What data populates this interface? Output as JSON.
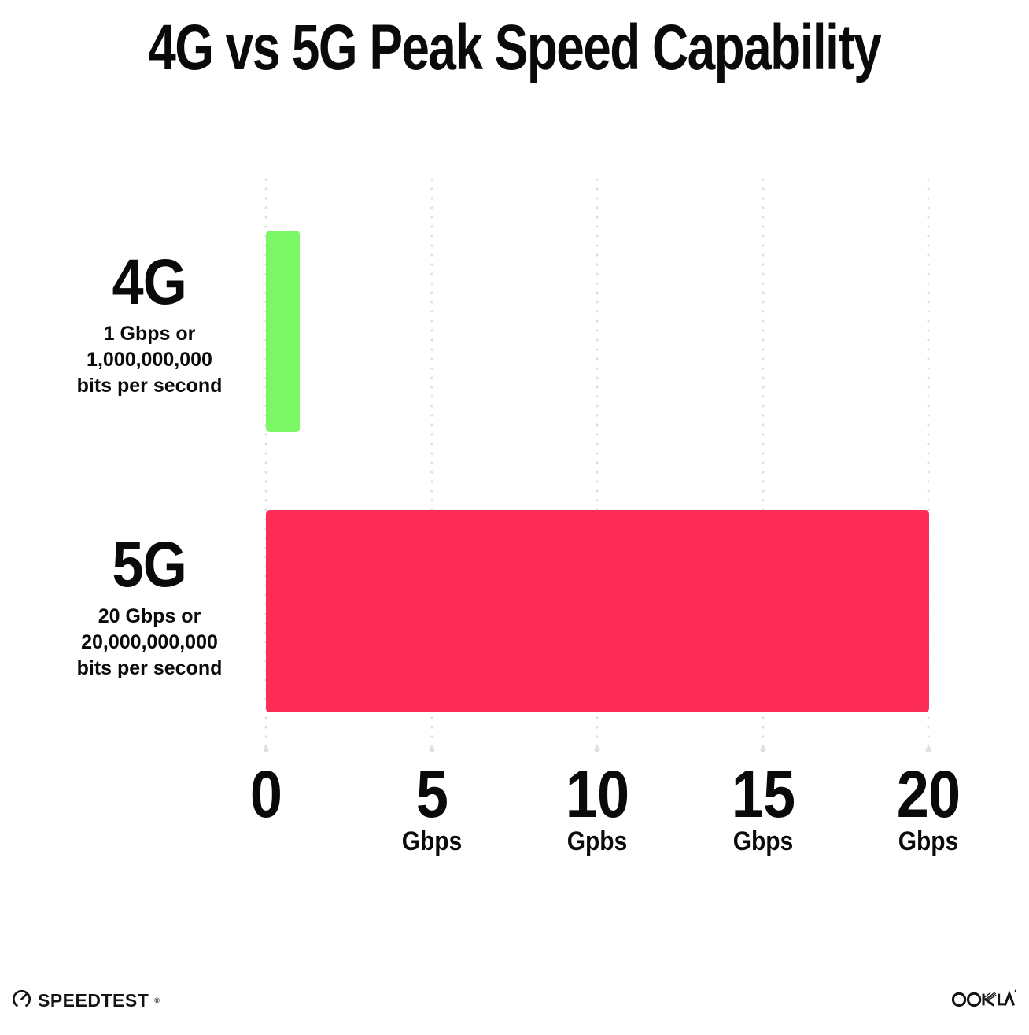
{
  "title": "4G vs 5G Peak Speed Capability",
  "chart_data": {
    "type": "bar",
    "orientation": "horizontal",
    "title": "4G vs 5G Peak Speed Capability",
    "categories": [
      "4G",
      "5G"
    ],
    "values": [
      1,
      20
    ],
    "x_unit": "Gbps",
    "xlim": [
      0,
      20
    ],
    "grid": "vertical-dotted",
    "legend": "none",
    "bars": [
      {
        "label": "4G",
        "value": 1,
        "color": "#7cf765",
        "description_lines": [
          "1 Gbps or",
          "1,000,000,000",
          "bits per second"
        ]
      },
      {
        "label": "5G",
        "value": 20,
        "color": "#fd2d58",
        "description_lines": [
          "20 Gbps or",
          "20,000,000,000",
          "bits per second"
        ]
      }
    ],
    "x_ticks": [
      {
        "value": 0,
        "label": "0",
        "unit": ""
      },
      {
        "value": 5,
        "label": "5",
        "unit": "Gbps"
      },
      {
        "value": 10,
        "label": "10",
        "unit": "Gpbs"
      },
      {
        "value": 15,
        "label": "15",
        "unit": "Gbps"
      },
      {
        "value": 20,
        "label": "20",
        "unit": "Gbps"
      }
    ]
  },
  "footer": {
    "speedtest_label": "SPEEDTEST",
    "speedtest_trademark": "®",
    "ookla_label": "OOKLA"
  },
  "colors": {
    "bar_4g": "#7cf765",
    "bar_5g": "#fd2d58",
    "gridline": "#dcdce6",
    "text": "#0a0a0a",
    "background": "#ffffff"
  }
}
